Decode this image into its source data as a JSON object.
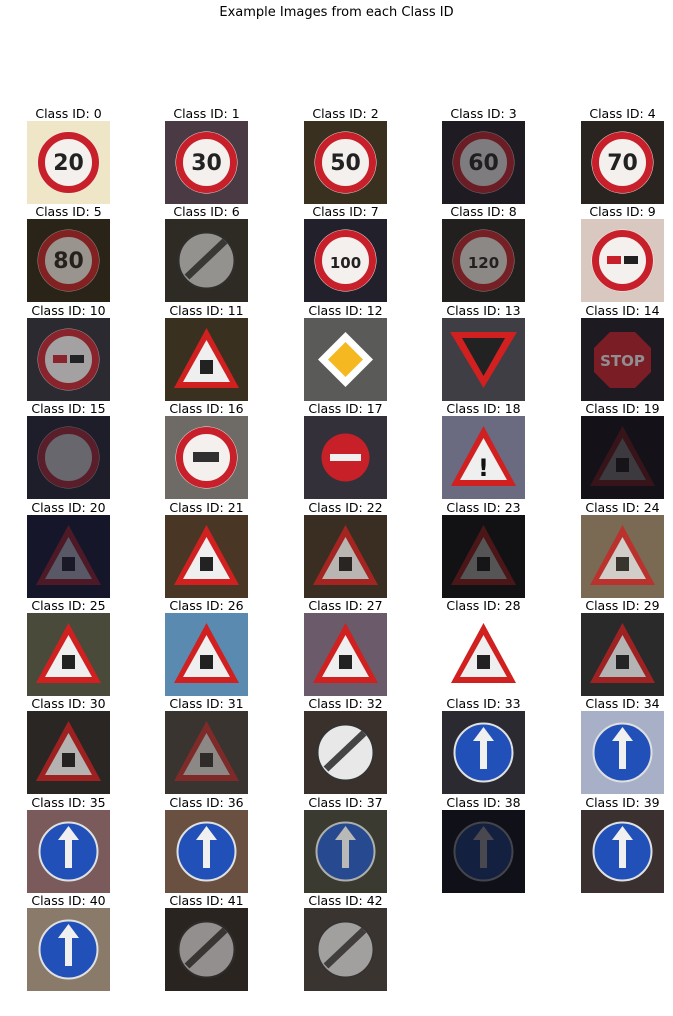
{
  "figure": {
    "title": "Example Images from each Class ID"
  },
  "label_prefix": "Class ID: ",
  "classes": [
    {
      "id": 0,
      "bg": "#efe6c8",
      "sign": "speed-limit-20-sign",
      "text": "20"
    },
    {
      "id": 1,
      "bg": "#4a3a44",
      "sign": "speed-limit-30-sign",
      "text": "30"
    },
    {
      "id": 2,
      "bg": "#3a3020",
      "sign": "speed-limit-50-sign",
      "text": "50"
    },
    {
      "id": 3,
      "bg": "#1e1c22",
      "sign": "speed-limit-60-sign",
      "text": "60"
    },
    {
      "id": 4,
      "bg": "#2a2420",
      "sign": "speed-limit-70-sign",
      "text": "70"
    },
    {
      "id": 5,
      "bg": "#2a2418",
      "sign": "speed-limit-80-sign",
      "text": "80"
    },
    {
      "id": 6,
      "bg": "#2e2a24",
      "sign": "end-speed-limit-80-sign",
      "text": ""
    },
    {
      "id": 7,
      "bg": "#22202a",
      "sign": "speed-limit-100-sign",
      "text": "100"
    },
    {
      "id": 8,
      "bg": "#22201e",
      "sign": "speed-limit-120-sign",
      "text": "120"
    },
    {
      "id": 9,
      "bg": "#d8c8c0",
      "sign": "no-passing-sign",
      "text": ""
    },
    {
      "id": 10,
      "bg": "#2a2a30",
      "sign": "no-passing-trucks-sign",
      "text": ""
    },
    {
      "id": 11,
      "bg": "#3a3020",
      "sign": "right-of-way-sign",
      "text": ""
    },
    {
      "id": 12,
      "bg": "#5a5a58",
      "sign": "priority-road-sign",
      "text": ""
    },
    {
      "id": 13,
      "bg": "#3e3e44",
      "sign": "yield-sign",
      "text": ""
    },
    {
      "id": 14,
      "bg": "#1e1a22",
      "sign": "stop-sign",
      "text": "STOP"
    },
    {
      "id": 15,
      "bg": "#1e1e2a",
      "sign": "no-vehicles-sign",
      "text": ""
    },
    {
      "id": 16,
      "bg": "#6e6a66",
      "sign": "no-trucks-sign",
      "text": ""
    },
    {
      "id": 17,
      "bg": "#34303a",
      "sign": "no-entry-sign",
      "text": ""
    },
    {
      "id": 18,
      "bg": "#6a6a80",
      "sign": "general-caution-sign",
      "text": "!"
    },
    {
      "id": 19,
      "bg": "#141218",
      "sign": "dangerous-curve-left-sign",
      "text": ""
    },
    {
      "id": 20,
      "bg": "#16162a",
      "sign": "dangerous-curve-right-sign",
      "text": ""
    },
    {
      "id": 21,
      "bg": "#4a3624",
      "sign": "double-curve-sign",
      "text": ""
    },
    {
      "id": 22,
      "bg": "#3a2e22",
      "sign": "bumpy-road-sign",
      "text": ""
    },
    {
      "id": 23,
      "bg": "#121214",
      "sign": "slippery-road-sign",
      "text": ""
    },
    {
      "id": 24,
      "bg": "#7a6a54",
      "sign": "road-narrows-sign",
      "text": ""
    },
    {
      "id": 25,
      "bg": "#4a4a3a",
      "sign": "road-work-sign",
      "text": ""
    },
    {
      "id": 26,
      "bg": "#5a8ab0",
      "sign": "traffic-signals-sign",
      "text": ""
    },
    {
      "id": 27,
      "bg": "#6a5a6a",
      "sign": "pedestrians-sign",
      "text": ""
    },
    {
      "id": 28,
      "bg": "#ffffff",
      "sign": "children-crossing-sign",
      "text": ""
    },
    {
      "id": 29,
      "bg": "#2a2a2a",
      "sign": "bicycles-crossing-sign",
      "text": ""
    },
    {
      "id": 30,
      "bg": "#2a2624",
      "sign": "ice-snow-sign",
      "text": ""
    },
    {
      "id": 31,
      "bg": "#3a3430",
      "sign": "wild-animals-sign",
      "text": ""
    },
    {
      "id": 32,
      "bg": "#3a302c",
      "sign": "end-all-limits-sign",
      "text": ""
    },
    {
      "id": 33,
      "bg": "#2a2a30",
      "sign": "turn-right-ahead-sign",
      "text": ""
    },
    {
      "id": 34,
      "bg": "#a8b0c8",
      "sign": "turn-left-ahead-sign",
      "text": ""
    },
    {
      "id": 35,
      "bg": "#7a5a5a",
      "sign": "ahead-only-sign",
      "text": ""
    },
    {
      "id": 36,
      "bg": "#6a5040",
      "sign": "go-straight-or-right-sign",
      "text": ""
    },
    {
      "id": 37,
      "bg": "#3a3a30",
      "sign": "go-straight-or-left-sign",
      "text": ""
    },
    {
      "id": 38,
      "bg": "#101018",
      "sign": "keep-right-sign",
      "text": ""
    },
    {
      "id": 39,
      "bg": "#3a3030",
      "sign": "keep-left-sign",
      "text": ""
    },
    {
      "id": 40,
      "bg": "#8a7a6a",
      "sign": "roundabout-sign",
      "text": ""
    },
    {
      "id": 41,
      "bg": "#2a2420",
      "sign": "end-no-passing-sign",
      "text": ""
    },
    {
      "id": 42,
      "bg": "#3a3430",
      "sign": "end-no-passing-trucks-sign",
      "text": ""
    }
  ]
}
